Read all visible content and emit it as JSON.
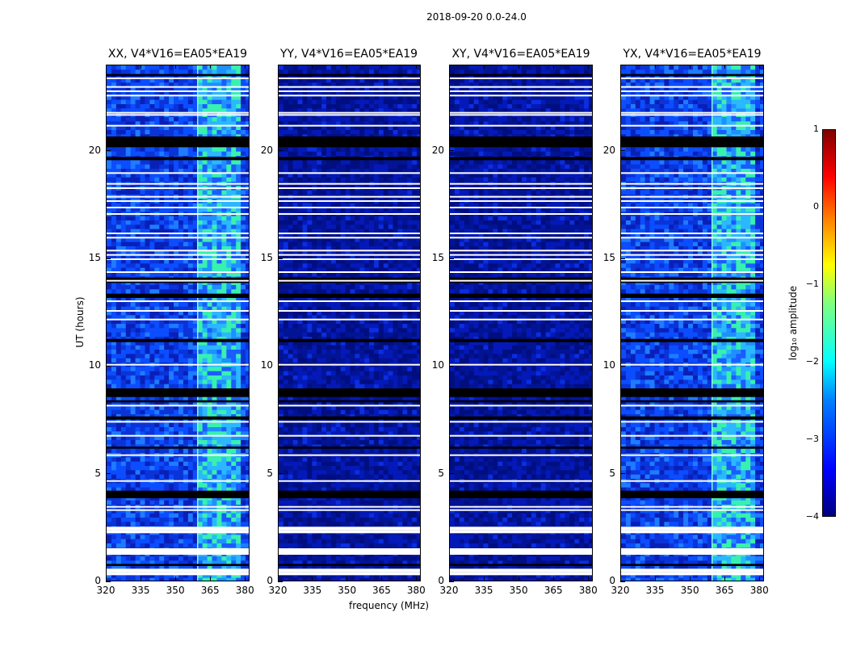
{
  "chart_data": {
    "type": "heatmap",
    "title": "2018-09-20 0.0-24.0",
    "xlabel": "frequency (MHz)",
    "ylabel": "UT (hours)",
    "xlim": [
      320,
      382
    ],
    "ylim": [
      0,
      24
    ],
    "xticks": [
      "320",
      "335",
      "350",
      "365",
      "380"
    ],
    "xtick_values": [
      320,
      335,
      350,
      365,
      380
    ],
    "yticks": [
      "0",
      "5",
      "10",
      "15",
      "20"
    ],
    "ytick_values": [
      0,
      5,
      10,
      15,
      20
    ],
    "panels": [
      {
        "title": "XX, V4*V16=EA05*EA19",
        "level": "bright",
        "bright_band_mhz": [
          359,
          378
        ]
      },
      {
        "title": "YY, V4*V16=EA05*EA19",
        "level": "dim",
        "bright_band_mhz": null
      },
      {
        "title": "XY, V4*V16=EA05*EA19",
        "level": "dim",
        "bright_band_mhz": null
      },
      {
        "title": "YX, V4*V16=EA05*EA19",
        "level": "bright",
        "bright_band_mhz": [
          359,
          378
        ]
      }
    ],
    "flagged_rows_hours": [
      0.4,
      0.55,
      1.35,
      1.5,
      2.35,
      2.5,
      3.35,
      3.5,
      4.7,
      5.9,
      6.8,
      7.45,
      8.2,
      10.1,
      12.2,
      12.6,
      13.05,
      14.0,
      14.4,
      15.0,
      15.2,
      15.4,
      16.0,
      16.2,
      17.1,
      17.4,
      17.7,
      17.9,
      18.3,
      18.5,
      19.0,
      21.2,
      21.7,
      21.8,
      22.6,
      22.8,
      23.0,
      23.4
    ],
    "dark_gap_hours": [
      [
        0.75,
        0.85
      ],
      [
        3.9,
        4.25
      ],
      [
        6.2,
        6.3
      ],
      [
        7.55,
        7.7
      ],
      [
        8.35,
        8.45
      ],
      [
        8.6,
        9.0
      ],
      [
        11.15,
        11.3
      ],
      [
        13.2,
        13.4
      ],
      [
        13.9,
        14.15
      ],
      [
        19.6,
        19.75
      ],
      [
        20.2,
        20.7
      ],
      [
        23.5,
        23.6
      ]
    ],
    "colorbar": {
      "label": "log₁₀ amplitude",
      "ticks": [
        "1",
        "0",
        "−1",
        "−2",
        "−3",
        "−4"
      ],
      "tick_values": [
        1,
        0,
        -1,
        -2,
        -3,
        -4
      ],
      "range": [
        -4,
        1
      ],
      "colormap": "jet"
    }
  }
}
